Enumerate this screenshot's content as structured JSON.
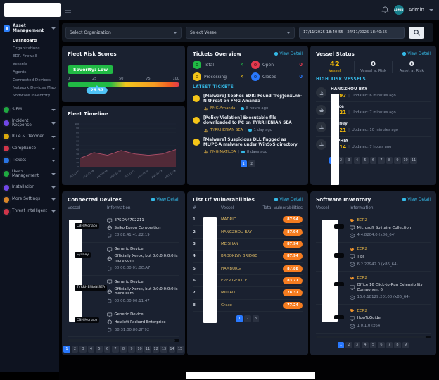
{
  "ui": {
    "separator": "|"
  },
  "topbar": {
    "user_name": "Admin",
    "avatar_text": "ADMIN"
  },
  "sidebar": {
    "parent": {
      "label": "Asset Management"
    },
    "submenu": [
      {
        "label": "Dashboard",
        "active": true
      },
      {
        "label": "Organizations"
      },
      {
        "label": "EDR Firewall"
      },
      {
        "label": "Vessels"
      },
      {
        "label": "Agents"
      },
      {
        "label": "Connected Devices"
      },
      {
        "label": "Network Devices Map"
      },
      {
        "label": "Software Inventory"
      }
    ],
    "items": [
      {
        "label": "SIEM",
        "color": "#21ba45"
      },
      {
        "label": "Incident Response",
        "color": "#7c4dff"
      },
      {
        "label": "Rule & Decoder",
        "color": "#f0b90b"
      },
      {
        "label": "Compliance",
        "color": "#e5394f"
      },
      {
        "label": "Tickets",
        "color": "#2d7ff9"
      },
      {
        "label": "Users Management",
        "color": "#21ba45"
      },
      {
        "label": "Installation",
        "color": "#7c4dff"
      },
      {
        "label": "More Settings",
        "color": "#f0932b"
      },
      {
        "label": "Threat Intelligent",
        "color": "#e5394f"
      }
    ]
  },
  "filters": {
    "organization": "Select Organization",
    "vessel": "Select Vessel",
    "date_range": "17/11/2025 18:40:55 - 24/11/2025 18:40:55"
  },
  "fleet_risk": {
    "title": "Fleet Risk Scores",
    "severity_badge": "Severity: Low",
    "score": "26.37",
    "scale": [
      "0",
      "25",
      "50",
      "75",
      "100"
    ]
  },
  "tickets": {
    "title": "Tickets Overview",
    "view_detail": "View Detail",
    "stats": [
      {
        "label": "Total",
        "value": "4",
        "color": "#21ba45"
      },
      {
        "label": "Open",
        "value": "0",
        "color": "#e5394f"
      },
      {
        "label": "Processing",
        "value": "4",
        "color": "#f5c518"
      },
      {
        "label": "Closed",
        "value": "0",
        "color": "#2979ff"
      }
    ],
    "latest_header": "LATEST TICKETS",
    "items": [
      {
        "title": "[Malware] Sophos EDR: Found Troj/JenxLnk-N threat on FMG Amanda",
        "vessel": "FMG Amanda",
        "time": "8 hours ago"
      },
      {
        "title": "[Policy Violation] Executable file downloaded to PC on TYRRHENIAN SEA",
        "vessel": "TYRRHENIAN SEA",
        "time": "1 day ago"
      },
      {
        "title": "[Malware] Suspicious DLL flagged as ML/PE-A malware under WinSxS directory",
        "vessel": "FMG MATILDA",
        "time": "8 days ago"
      }
    ],
    "pages": [
      {
        "label": "1",
        "active": true
      },
      {
        "label": "2"
      }
    ]
  },
  "vessel_status": {
    "title": "Vessel Status",
    "view_detail": "View Detail",
    "stats": [
      {
        "value": "42",
        "label": "Vessel",
        "highlight": true
      },
      {
        "value": "0",
        "label": "Vessel at Risk"
      },
      {
        "value": "0",
        "label": "Asset at Risk"
      }
    ],
    "high_risk_header": "HIGH RISK VESSELS",
    "vessels": [
      {
        "name": "HANGZHOU BAY",
        "score": "63.97",
        "updated": "Updated: 6 minutes ago"
      },
      {
        "name": "Grace",
        "score": "54.21",
        "updated": "Updated: 7 minutes ago"
      },
      {
        "name": "Sydney",
        "score": "54.21",
        "updated": "Updated: 10 minutes ago"
      },
      {
        "name": "SOPHIA",
        "score": "50.14",
        "updated": "Updated: 7 hours ago"
      }
    ],
    "pages": [
      {
        "label": "1",
        "active": true
      },
      {
        "label": "2"
      },
      {
        "label": "3"
      },
      {
        "label": "4"
      },
      {
        "label": "5"
      },
      {
        "label": "6"
      },
      {
        "label": "7"
      },
      {
        "label": "8"
      },
      {
        "label": "9"
      },
      {
        "label": "10"
      },
      {
        "label": "11"
      }
    ]
  },
  "connected_devices": {
    "title": "Connected Devices",
    "view_detail": "View Detail",
    "columns": {
      "vessel": "Vessel",
      "information": "Information"
    },
    "rows": [
      {
        "vessel": "CBH Monaco",
        "device": "EPSON4702211",
        "vendor": "Seiko Epson Corporation",
        "mac": "E8:88:41:41:22:19"
      },
      {
        "vessel": "Sydney",
        "device": "Generic Device",
        "vendor": "Officially Xerox, but 0:0:0:0:0:0 is more com",
        "mac": "00:00:00:01:0C:A7"
      },
      {
        "vessel": "TYRRHENIAN SEA",
        "device": "Generic Device",
        "vendor": "Officially Xerox, but 0:0:0:0:0:0 is more com",
        "mac": "00:00:00:00:11:47"
      },
      {
        "vessel": "CBH Monaco",
        "device": "Generic Device",
        "vendor": "Hewlett Packard Enterprise",
        "mac": "B8:31:00:80:2F:92"
      }
    ],
    "pages": [
      {
        "label": "1",
        "active": true
      },
      {
        "label": "2"
      },
      {
        "label": "3"
      },
      {
        "label": "4"
      },
      {
        "label": "5"
      },
      {
        "label": "6"
      },
      {
        "label": "7"
      },
      {
        "label": "8"
      },
      {
        "label": "9"
      },
      {
        "label": "10"
      },
      {
        "label": "11"
      },
      {
        "label": "12"
      },
      {
        "label": "13"
      },
      {
        "label": "14"
      },
      {
        "label": "15"
      }
    ]
  },
  "vulnerabilities": {
    "title": "List Of Vulnerabilities",
    "view_detail": "View Detail",
    "columns": {
      "index": "#",
      "vessel": "Vessel",
      "total": "Total Vulnerabilities"
    },
    "rows": [
      {
        "index": "1",
        "vessel": "MADRID",
        "value": "87.94"
      },
      {
        "index": "2",
        "vessel": "HANGZHOU BAY",
        "value": "87.94"
      },
      {
        "index": "3",
        "vessel": "MEISHAN",
        "value": "87.94"
      },
      {
        "index": "4",
        "vessel": "BROOKLYN BRIDGE",
        "value": "87.94"
      },
      {
        "index": "5",
        "vessel": "HAMBURG",
        "value": "87.88"
      },
      {
        "index": "6",
        "vessel": "EVER GENTLE",
        "value": "83.77"
      },
      {
        "index": "7",
        "vessel": "MILLAU",
        "value": "78.37"
      },
      {
        "index": "8",
        "vessel": "Grace",
        "value": "77.24"
      }
    ],
    "pages": [
      {
        "label": "1",
        "active": true
      },
      {
        "label": "2"
      },
      {
        "label": "3"
      }
    ]
  },
  "software_inventory": {
    "title": "Software Inventory",
    "view_detail": "View Detail",
    "columns": {
      "vessel": "Vessel",
      "information": "Information"
    },
    "rows": [
      {
        "tag": "ECR2",
        "name": "Microsoft Solitaire Collection",
        "version": "4.4.8204.0 (x86_64)"
      },
      {
        "tag": "ECR2",
        "name": "Tips",
        "version": "6.2.22942.0 (x86_64)"
      },
      {
        "tag": "ECR2",
        "name": "Office 16 Click-to-Run Extensibility Component 6",
        "version": "16.0.18129.20100 (x86_64)"
      },
      {
        "tag": "ECR2",
        "name": "HowToGuide",
        "version": "1.0.1.0 (x64)"
      }
    ],
    "pages": [
      {
        "label": "1",
        "active": true
      },
      {
        "label": "2"
      },
      {
        "label": "3"
      },
      {
        "label": "4"
      },
      {
        "label": "5"
      },
      {
        "label": "6"
      },
      {
        "label": "7"
      },
      {
        "label": "8"
      },
      {
        "label": "9"
      }
    ]
  },
  "chart_data": {
    "type": "area",
    "title": "Fleet Timeline",
    "x": [
      "2025-11-17",
      "2025-11-18",
      "2025-11-19",
      "2025-11-20",
      "2025-11-21",
      "2025-11-22",
      "2025-11-23",
      "2025-11-24"
    ],
    "values": [
      20,
      33,
      27,
      38,
      30,
      27,
      30,
      40
    ],
    "ylim": [
      0,
      100
    ],
    "ytick_step": 10,
    "grid": true,
    "legend_position": "none",
    "line_color": "#b0506a",
    "fill_color": "#5c2b3a"
  },
  "colors": {
    "accent": "#35b9e6",
    "page_active": "#2979ff",
    "pill_orange": "#f57c20",
    "score_yellow": "#f0b90b",
    "severity_green": "#21ba45"
  }
}
